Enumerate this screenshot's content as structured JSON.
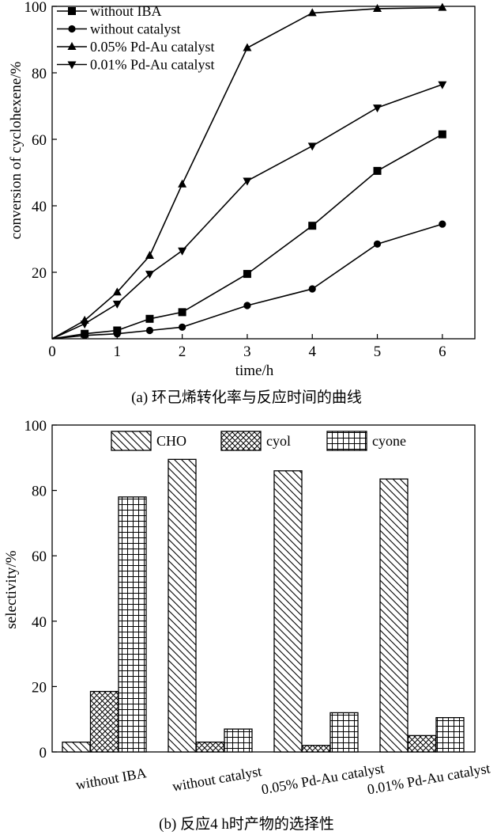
{
  "chart_data": [
    {
      "type": "line",
      "xlabel": "time/h",
      "ylabel": "conversion of cyclohexene/%",
      "xlim": [
        0,
        6.5
      ],
      "ylim": [
        0,
        100
      ],
      "xticks": [
        0,
        1,
        2,
        3,
        4,
        5,
        6
      ],
      "yticks": [
        20,
        40,
        60,
        80,
        100
      ],
      "grid": false,
      "legend": "top-left",
      "series": [
        {
          "name": "without IBA",
          "marker": "square",
          "x": [
            0,
            0.5,
            1,
            1.5,
            2,
            3,
            4,
            5,
            6
          ],
          "y": [
            0,
            1.5,
            2.5,
            6,
            8,
            19.5,
            34,
            50.5,
            61.5
          ]
        },
        {
          "name": "without catalyst",
          "marker": "circle",
          "x": [
            0,
            0.5,
            1,
            1.5,
            2,
            3,
            4,
            5,
            6
          ],
          "y": [
            0,
            1,
            1.5,
            2.5,
            3.5,
            10,
            15,
            28.5,
            34.5
          ]
        },
        {
          "name": "0.05% Pd-Au catalyst",
          "marker": "triangle-up",
          "x": [
            0,
            0.5,
            1,
            1.5,
            2,
            3,
            4,
            5,
            6
          ],
          "y": [
            0,
            5.5,
            14,
            25,
            46.5,
            87.5,
            98,
            99.3,
            99.6
          ]
        },
        {
          "name": "0.01% Pd-Au catalyst",
          "marker": "triangle-down",
          "x": [
            0,
            0.5,
            1,
            1.5,
            2,
            3,
            4,
            5,
            6
          ],
          "y": [
            0,
            4.5,
            10.5,
            19.5,
            26.5,
            47.5,
            58,
            69.5,
            76.5
          ]
        }
      ],
      "caption": "(a) 环己烯转化率与反应时间的曲线"
    },
    {
      "type": "bar",
      "xlabel": "",
      "ylabel": "selectivity/%",
      "ylim": [
        0,
        100
      ],
      "yticks": [
        0,
        20,
        40,
        60,
        80,
        100
      ],
      "grid": false,
      "legend": "top",
      "categories": [
        "without IBA",
        "without catalyst",
        "0.05% Pd-Au catalyst",
        "0.01% Pd-Au catalyst"
      ],
      "series": [
        {
          "name": "CHO",
          "pattern": "diagonal",
          "values": [
            3,
            89.5,
            86,
            83.5
          ]
        },
        {
          "name": "cyol",
          "pattern": "crosshatch",
          "values": [
            18.5,
            3,
            2,
            5
          ]
        },
        {
          "name": "cyone",
          "pattern": "grid",
          "values": [
            78,
            7,
            12,
            10.5
          ]
        }
      ],
      "caption": "(b) 反应4 h时产物的选择性"
    }
  ]
}
